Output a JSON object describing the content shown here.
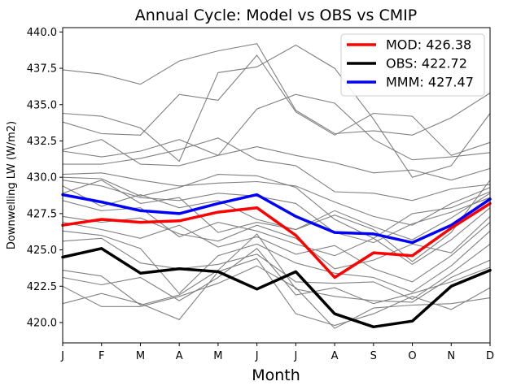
{
  "chart_data": {
    "type": "line",
    "title": "Annual Cycle: Model vs OBS vs CMIP",
    "xlabel": "Month",
    "ylabel": "Downwelling LW (W/m2)",
    "categories": [
      "J",
      "F",
      "M",
      "A",
      "M",
      "J",
      "J",
      "A",
      "S",
      "O",
      "N",
      "D"
    ],
    "ylim": [
      418.6,
      440.3
    ],
    "yticks": [
      "420.0",
      "422.5",
      "425.0",
      "427.5",
      "430.0",
      "432.5",
      "435.0",
      "437.5",
      "440.0"
    ],
    "legend_position": "top-right",
    "series": [
      {
        "name": "MOD",
        "label": "MOD: 426.38",
        "color": "#ff0000",
        "values": [
          426.7,
          427.1,
          426.9,
          427.0,
          427.6,
          427.9,
          426.0,
          423.1,
          424.8,
          424.6,
          426.5,
          428.2
        ]
      },
      {
        "name": "OBS",
        "label": "OBS: 422.72",
        "color": "#000000",
        "values": [
          424.5,
          425.1,
          423.4,
          423.7,
          423.5,
          422.3,
          423.5,
          420.6,
          419.7,
          420.1,
          422.5,
          423.6
        ]
      },
      {
        "name": "MMM",
        "label": "MMM: 427.47",
        "color": "#0000ff",
        "values": [
          428.8,
          428.3,
          427.7,
          427.5,
          428.2,
          428.8,
          427.3,
          426.2,
          426.1,
          425.5,
          426.7,
          428.5
        ]
      }
    ],
    "cmip_color": "#808080",
    "cmip_models": [
      [
        437.4,
        437.1,
        436.4,
        438.0,
        438.7,
        439.2,
        434.6,
        433.0,
        433.2,
        432.9,
        434.1,
        435.8
      ],
      [
        434.4,
        434.2,
        433.4,
        431.1,
        437.2,
        437.6,
        439.1,
        437.5,
        434.0,
        430.0,
        430.8,
        434.4
      ],
      [
        433.8,
        433.0,
        432.9,
        435.7,
        435.3,
        438.4,
        434.5,
        432.9,
        434.4,
        434.2,
        431.5,
        432.4
      ],
      [
        431.9,
        432.6,
        430.9,
        430.8,
        431.5,
        434.7,
        435.7,
        435.1,
        432.6,
        431.2,
        431.4,
        431.7
      ],
      [
        431.8,
        431.4,
        431.8,
        432.6,
        431.5,
        432.1,
        431.5,
        431.0,
        430.3,
        430.5,
        429.8,
        430.6
      ],
      [
        430.9,
        430.9,
        431.3,
        431.9,
        432.7,
        431.2,
        430.8,
        429.0,
        428.9,
        428.4,
        429.2,
        429.5
      ],
      [
        430.2,
        430.3,
        429.8,
        429.4,
        429.6,
        429.7,
        429.4,
        428.3,
        427.3,
        426.7,
        428.2,
        429.3
      ],
      [
        430.0,
        429.9,
        428.7,
        429.3,
        430.2,
        430.1,
        429.3,
        427.1,
        425.8,
        427.5,
        427.9,
        429.0
      ],
      [
        429.8,
        429.4,
        428.6,
        428.4,
        428.9,
        428.7,
        428.2,
        426.2,
        425.5,
        426.8,
        427.6,
        428.6
      ],
      [
        429.4,
        428.0,
        428.8,
        427.9,
        428.4,
        427.1,
        426.4,
        427.7,
        426.6,
        425.7,
        427.2,
        428.9
      ],
      [
        428.9,
        429.8,
        428.2,
        428.6,
        426.2,
        426.9,
        426.4,
        427.4,
        426.4,
        424.2,
        426.2,
        429.8
      ],
      [
        428.4,
        427.7,
        427.9,
        425.9,
        426.9,
        426.3,
        425.4,
        424.6,
        425.8,
        424.0,
        425.7,
        427.9
      ],
      [
        427.3,
        426.9,
        427.2,
        426.1,
        425.6,
        426.7,
        425.8,
        423.7,
        424.3,
        425.4,
        424.8,
        427.3
      ],
      [
        426.9,
        426.4,
        425.8,
        426.7,
        425.2,
        425.9,
        424.7,
        425.3,
        423.7,
        422.8,
        424.6,
        426.9
      ],
      [
        426.3,
        426.0,
        425.1,
        422.0,
        424.6,
        425.4,
        424.1,
        423.4,
        423.1,
        422.1,
        423.9,
        426.3
      ],
      [
        425.6,
        425.8,
        424.1,
        423.7,
        424.0,
        424.7,
        422.8,
        422.7,
        422.8,
        421.6,
        423.4,
        425.4
      ],
      [
        423.6,
        423.2,
        421.2,
        421.9,
        423.6,
        426.1,
        422.3,
        421.8,
        421.5,
        421.4,
        423.1,
        424.3
      ],
      [
        423.1,
        422.6,
        423.1,
        421.5,
        423.1,
        425.1,
        421.9,
        422.4,
        421.3,
        422.0,
        422.8,
        423.8
      ],
      [
        422.5,
        421.1,
        421.1,
        421.8,
        422.7,
        423.9,
        422.4,
        419.6,
        421.0,
        421.2,
        421.3,
        421.7
      ],
      [
        421.3,
        422.0,
        421.3,
        420.2,
        423.5,
        424.4,
        420.6,
        419.8,
        420.6,
        421.8,
        420.9,
        422.4
      ]
    ]
  }
}
